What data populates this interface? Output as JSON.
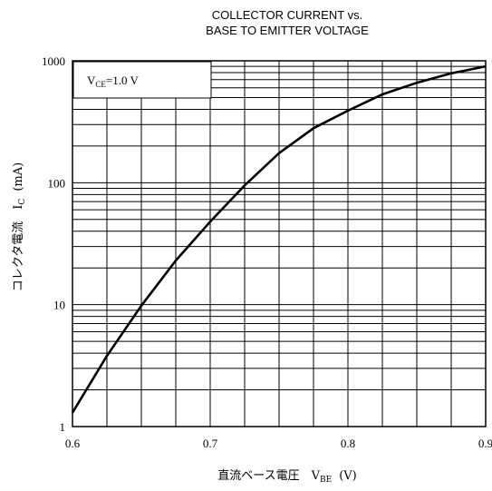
{
  "chart_data": {
    "type": "line",
    "title_lines": [
      "COLLECTOR CURRENT vs.",
      "BASE TO EMITTER VOLTAGE"
    ],
    "xlabel": "直流ベース電圧　V",
    "xlabel_subscript": "BE",
    "xlabel_unit": "(V)",
    "ylabel": "コレクタ電流　I",
    "ylabel_subscript": "C",
    "ylabel_unit": "(mA)",
    "x_scale": "linear",
    "y_scale": "log",
    "xlim": [
      0.6,
      0.9
    ],
    "ylim": [
      1,
      1000
    ],
    "x_ticks": [
      0.6,
      0.7,
      0.8,
      0.9
    ],
    "x_tick_labels": [
      "0.6",
      "0.7",
      "0.8",
      "0.9"
    ],
    "y_ticks": [
      1,
      10,
      100,
      1000
    ],
    "y_tick_labels": [
      "1",
      "10",
      "100",
      "1000"
    ],
    "x_grid_step": 0.025,
    "grid": true,
    "annotation": {
      "prefix": "V",
      "subscript": "CE",
      "suffix": "=1.0 V",
      "position": "top-left"
    },
    "series": [
      {
        "x": [
          0.6,
          0.625,
          0.65,
          0.675,
          0.7,
          0.725,
          0.75,
          0.775,
          0.8,
          0.825,
          0.85,
          0.875,
          0.9
        ],
        "y": [
          1.3,
          3.8,
          9.8,
          23,
          48,
          95,
          175,
          280,
          390,
          530,
          660,
          790,
          900
        ]
      }
    ]
  }
}
